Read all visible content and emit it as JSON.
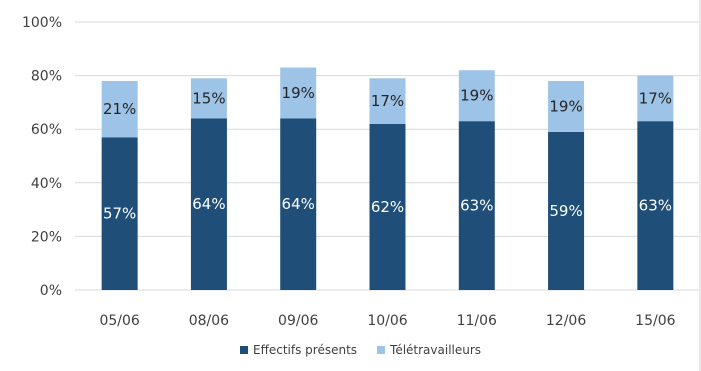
{
  "chart_data": {
    "type": "bar",
    "stacked": true,
    "categories": [
      "05/06",
      "08/06",
      "09/06",
      "10/06",
      "11/06",
      "12/06",
      "15/06"
    ],
    "series": [
      {
        "name": "Effectifs présents",
        "color": "#1f4e79",
        "label_color": "#ffffff",
        "values": [
          57,
          64,
          64,
          62,
          63,
          59,
          63
        ],
        "labels": [
          "57%",
          "64%",
          "64%",
          "62%",
          "63%",
          "59%",
          "63%"
        ]
      },
      {
        "name": "Télétravailleurs",
        "color": "#9dc3e6",
        "label_color": "#262626",
        "values": [
          21,
          15,
          19,
          17,
          19,
          19,
          17
        ],
        "labels": [
          "21%",
          "15%",
          "19%",
          "17%",
          "19%",
          "19%",
          "17%"
        ]
      }
    ],
    "ylim": [
      0,
      100
    ],
    "y_ticks": [
      0,
      20,
      40,
      60,
      80,
      100
    ],
    "y_tick_labels": [
      "0%",
      "20%",
      "40%",
      "60%",
      "80%",
      "100%"
    ],
    "grid": true,
    "grid_color": "#d9d9d9",
    "legend": "bottom",
    "title": "",
    "xlabel": "",
    "ylabel": ""
  }
}
